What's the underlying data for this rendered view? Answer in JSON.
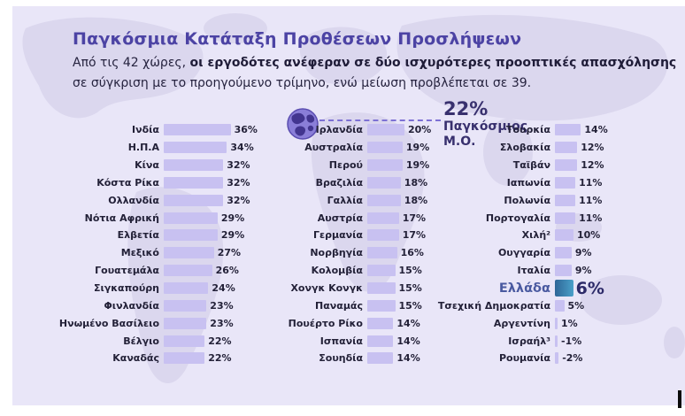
{
  "header": {
    "title": "Παγκόσμια Κατάταξη Προθέσεων Προσλήψεων",
    "subtitle_prefix": "Από τις 42 χώρες, ",
    "subtitle_bold": "οι εργοδότες ανέφεραν σε δύο ισχυρότερες προοπτικές απασχόλησης",
    "subtitle_line2": "σε σύγκριση με το προηγούμενο τρίμηνο, ενώ μείωση προβλέπεται σε 39."
  },
  "global_average": {
    "value_label": "22%",
    "caption_line1": "Παγκόσμιος",
    "caption_line2": "Μ.Ο."
  },
  "colors": {
    "background": "#e9e6f8",
    "map_watermark": "#dbd7ee",
    "bar": "#c8c1f1",
    "highlight_bar_start": "#2e6697",
    "highlight_bar_end": "#4aa0c9",
    "title": "#4c43a4",
    "text": "#232138",
    "average_text": "#38306e",
    "highlight_label": "#4a5aa0",
    "dashed_line": "#7d71d4"
  },
  "chart_data": {
    "type": "bar",
    "orientation": "horizontal",
    "unit": "%",
    "title": "Παγκόσμια Κατάταξη Προθέσεων Προσλήψεων",
    "global_average": 22,
    "highlight_country": "Ελλάδα",
    "highlight_value": 6,
    "value_range": [
      -2,
      36
    ],
    "columns": [
      {
        "rows": [
          {
            "label": "Ινδία",
            "value": 36,
            "display": "36%"
          },
          {
            "label": "Η.Π.Α",
            "value": 34,
            "display": "34%"
          },
          {
            "label": "Κίνα",
            "value": 32,
            "display": "32%"
          },
          {
            "label": "Κόστα Ρίκα",
            "value": 32,
            "display": "32%"
          },
          {
            "label": "Ολλανδία",
            "value": 32,
            "display": "32%"
          },
          {
            "label": "Νότια Αφρική",
            "value": 29,
            "display": "29%"
          },
          {
            "label": "Ελβετία",
            "value": 29,
            "display": "29%"
          },
          {
            "label": "Μεξικό",
            "value": 27,
            "display": "27%"
          },
          {
            "label": "Γουατεμάλα",
            "value": 26,
            "display": "26%"
          },
          {
            "label": "Σιγκαπούρη",
            "value": 24,
            "display": "24%"
          },
          {
            "label": "Φινλανδία",
            "value": 23,
            "display": "23%"
          },
          {
            "label": "Ηνωμένο Βασίλειο",
            "value": 23,
            "display": "23%"
          },
          {
            "label": "Βέλγιο",
            "value": 22,
            "display": "22%"
          },
          {
            "label": "Καναδάς",
            "value": 22,
            "display": "22%"
          }
        ]
      },
      {
        "rows": [
          {
            "label": "Ιρλανδία",
            "value": 20,
            "display": "20%"
          },
          {
            "label": "Αυστραλία",
            "value": 19,
            "display": "19%"
          },
          {
            "label": "Περού",
            "value": 19,
            "display": "19%"
          },
          {
            "label": "Βραζιλία",
            "value": 18,
            "display": "18%"
          },
          {
            "label": "Γαλλία",
            "value": 18,
            "display": "18%"
          },
          {
            "label": "Αυστρία",
            "value": 17,
            "display": "17%"
          },
          {
            "label": "Γερμανία",
            "value": 17,
            "display": "17%"
          },
          {
            "label": "Νορβηγία",
            "value": 16,
            "display": "16%"
          },
          {
            "label": "Κολομβία",
            "value": 15,
            "display": "15%"
          },
          {
            "label": "Χονγκ Κονγκ",
            "value": 15,
            "display": "15%"
          },
          {
            "label": "Παναμάς",
            "value": 15,
            "display": "15%"
          },
          {
            "label": "Πουέρτο Ρίκο",
            "value": 14,
            "display": "14%"
          },
          {
            "label": "Ισπανία",
            "value": 14,
            "display": "14%"
          },
          {
            "label": "Σουηδία",
            "value": 14,
            "display": "14%"
          }
        ]
      },
      {
        "rows": [
          {
            "label": "Τουρκία",
            "value": 14,
            "display": "14%"
          },
          {
            "label": "Σλοβακία",
            "value": 12,
            "display": "12%"
          },
          {
            "label": "Ταϊβάν",
            "value": 12,
            "display": "12%"
          },
          {
            "label": "Ιαπωνία",
            "value": 11,
            "display": "11%"
          },
          {
            "label": "Πολωνία",
            "value": 11,
            "display": "11%"
          },
          {
            "label": "Πορτογαλία",
            "value": 11,
            "display": "11%"
          },
          {
            "label": "Χιλή²",
            "value": 10,
            "display": "10%"
          },
          {
            "label": "Ουγγαρία",
            "value": 9,
            "display": "9%"
          },
          {
            "label": "Ιταλία",
            "value": 9,
            "display": "9%"
          },
          {
            "label": "Ελλάδα",
            "value": 6,
            "display": "6%",
            "highlight": true
          },
          {
            "label": "Τσεχική Δημοκρατία",
            "value": 5,
            "display": "5%"
          },
          {
            "label": "Αργεντίνη",
            "value": 1,
            "display": "1%"
          },
          {
            "label": "Ισραήλ³",
            "value": -1,
            "display": "-1%"
          },
          {
            "label": "Ρουμανία",
            "value": -2,
            "display": "-2%"
          }
        ]
      }
    ]
  }
}
